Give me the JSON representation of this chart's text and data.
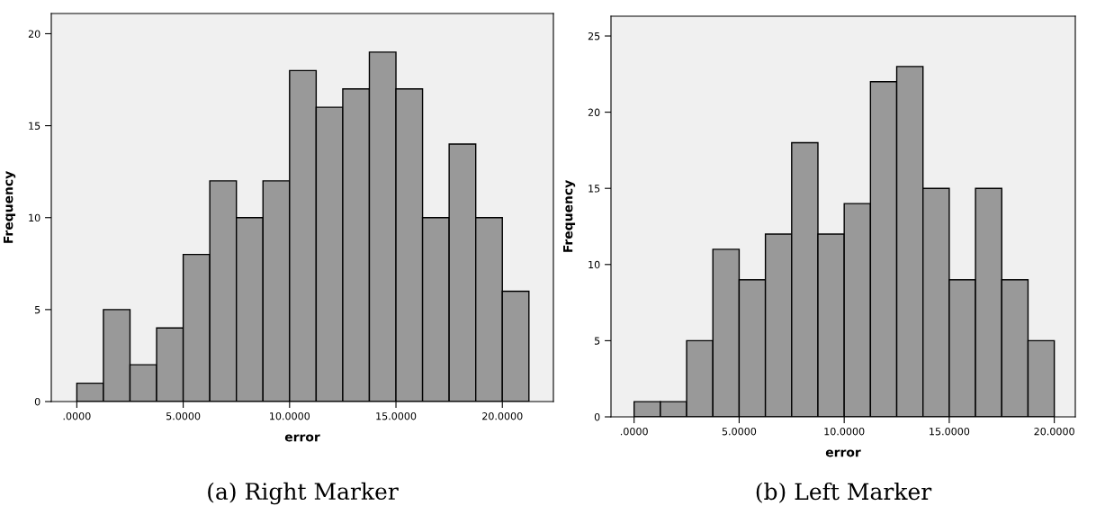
{
  "chart_data": [
    {
      "type": "histogram",
      "xlabel": "error",
      "ylabel": "Frequency",
      "color": "#999999",
      "bins": [
        0,
        1.25,
        2.5,
        3.75,
        5,
        6.25,
        7.5,
        8.75,
        10,
        11.25,
        12.5,
        13.75,
        15,
        16.25,
        17.5,
        18.75,
        20,
        21.25
      ],
      "values": [
        1,
        5,
        2,
        4,
        8,
        12,
        10,
        12,
        18,
        16,
        17,
        19,
        17,
        10,
        14,
        10,
        6
      ],
      "xlim": [
        -1.2,
        22.4
      ],
      "ylim": [
        0,
        21.1
      ],
      "xticks": [
        {
          "value": 0,
          "label": ".0000"
        },
        {
          "value": 5,
          "label": "5.0000"
        },
        {
          "value": 10,
          "label": "10.0000"
        },
        {
          "value": 15,
          "label": "15.0000"
        },
        {
          "value": 20,
          "label": "20.0000"
        }
      ],
      "yticks": [
        0,
        5,
        10,
        15,
        20
      ],
      "annotations": [
        "(a) Right Marker"
      ]
    },
    {
      "type": "histogram",
      "xlabel": "error",
      "ylabel": "Frequency",
      "color": "#999999",
      "bins": [
        0,
        1.25,
        2.5,
        3.75,
        5,
        6.25,
        7.5,
        8.75,
        10,
        11.25,
        12.5,
        13.75,
        15,
        16.25,
        17.5,
        18.75,
        20
      ],
      "values": [
        1,
        1,
        5,
        11,
        9,
        12,
        18,
        12,
        14,
        22,
        23,
        15,
        9,
        15,
        9,
        5
      ],
      "xlim": [
        -1.1,
        21.0
      ],
      "ylim": [
        0,
        26.3
      ],
      "xticks": [
        {
          "value": 0,
          "label": ".0000"
        },
        {
          "value": 5,
          "label": "5.0000"
        },
        {
          "value": 10,
          "label": "10.0000"
        },
        {
          "value": 15,
          "label": "15.0000"
        },
        {
          "value": 20,
          "label": "20.0000"
        }
      ],
      "yticks": [
        0,
        5,
        10,
        15,
        20,
        25
      ],
      "annotations": [
        "(b) Left Marker"
      ]
    }
  ]
}
